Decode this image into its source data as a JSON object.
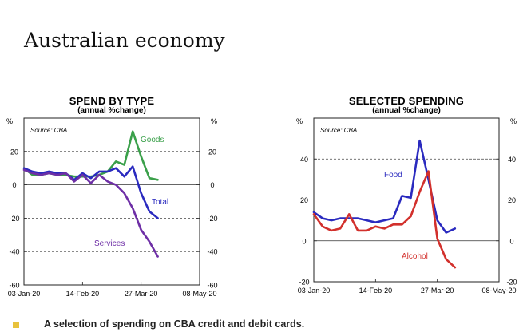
{
  "page": {
    "title": "Australian economy",
    "footer_text": "A selection of spending on CBA credit and debit cards.",
    "bullet_color": "#e8c23c"
  },
  "chart_data": [
    {
      "type": "line",
      "title": "SPEND BY TYPE",
      "subtitle": "(annual %change)",
      "unit_left": "%",
      "unit_right": "%",
      "source": "Source: CBA",
      "ylim": [
        -60,
        40
      ],
      "yticks": [
        20,
        0,
        -20,
        -40,
        -60
      ],
      "xlim": [
        0,
        126
      ],
      "xticks": [
        {
          "label": "03-Jan-20",
          "value": 0
        },
        {
          "label": "14-Feb-20",
          "value": 42
        },
        {
          "label": "27-Mar-20",
          "value": 84
        },
        {
          "label": "08-May-20",
          "value": 126
        }
      ],
      "gridlines": [
        20,
        -20,
        -40
      ],
      "series": [
        {
          "name": "Goods",
          "color": "#3aa04a",
          "x": [
            0,
            6,
            12,
            18,
            24,
            30,
            36,
            42,
            48,
            54,
            60,
            66,
            72,
            78,
            84,
            90,
            96
          ],
          "y": [
            10,
            6,
            6,
            7,
            6,
            6,
            5,
            5,
            5,
            6,
            8,
            14,
            12,
            32,
            17,
            4,
            3
          ]
        },
        {
          "name": "Total",
          "color": "#2a2abf",
          "x": [
            0,
            6,
            12,
            18,
            24,
            30,
            36,
            42,
            48,
            54,
            60,
            66,
            72,
            78,
            84,
            90,
            96
          ],
          "y": [
            10,
            8,
            7,
            8,
            7,
            7,
            3,
            7,
            4,
            8,
            8,
            10,
            5,
            11,
            -5,
            -16,
            -20
          ]
        },
        {
          "name": "Services",
          "color": "#6e2fa6",
          "x": [
            0,
            6,
            12,
            18,
            24,
            30,
            36,
            42,
            48,
            54,
            60,
            66,
            72,
            78,
            84,
            90,
            96
          ],
          "y": [
            9,
            7,
            6,
            7,
            6,
            7,
            2,
            6,
            1,
            6,
            2,
            0,
            -5,
            -14,
            -27,
            -34,
            -43
          ]
        }
      ],
      "annotations": [
        {
          "text": "Goods",
          "series": "Goods"
        },
        {
          "text": "Total",
          "series": "Total"
        },
        {
          "text": "Services",
          "series": "Services"
        }
      ]
    },
    {
      "type": "line",
      "title": "SELECTED  SPENDING",
      "subtitle": "(annual %change)",
      "unit_left": "%",
      "unit_right": "%",
      "source": "Source: CBA",
      "ylim": [
        -20,
        60
      ],
      "yticks": [
        40,
        20,
        0,
        -20
      ],
      "xlim": [
        0,
        126
      ],
      "xticks": [
        {
          "label": "03-Jan-20",
          "value": 0
        },
        {
          "label": "14-Feb-20",
          "value": 42
        },
        {
          "label": "27-Mar-20",
          "value": 84
        },
        {
          "label": "08-May-20",
          "value": 126
        }
      ],
      "gridlines": [
        40,
        20
      ],
      "series": [
        {
          "name": "Food",
          "color": "#2a2abf",
          "x": [
            0,
            6,
            12,
            18,
            24,
            30,
            36,
            42,
            48,
            54,
            60,
            66,
            72,
            78,
            84,
            90,
            96
          ],
          "y": [
            14,
            11,
            10,
            11,
            11,
            11,
            10,
            9,
            10,
            11,
            22,
            21,
            49,
            30,
            10,
            4,
            6
          ]
        },
        {
          "name": "Alcohol",
          "color": "#d2302c",
          "x": [
            0,
            6,
            12,
            18,
            24,
            30,
            36,
            42,
            48,
            54,
            60,
            66,
            72,
            78,
            84,
            90,
            96
          ],
          "y": [
            13,
            7,
            5,
            6,
            13,
            5,
            5,
            7,
            6,
            8,
            8,
            12,
            24,
            34,
            1,
            -9,
            -13
          ]
        }
      ],
      "annotations": [
        {
          "text": "Food",
          "series": "Food"
        },
        {
          "text": "Alcohol",
          "series": "Alcohol"
        }
      ]
    }
  ]
}
